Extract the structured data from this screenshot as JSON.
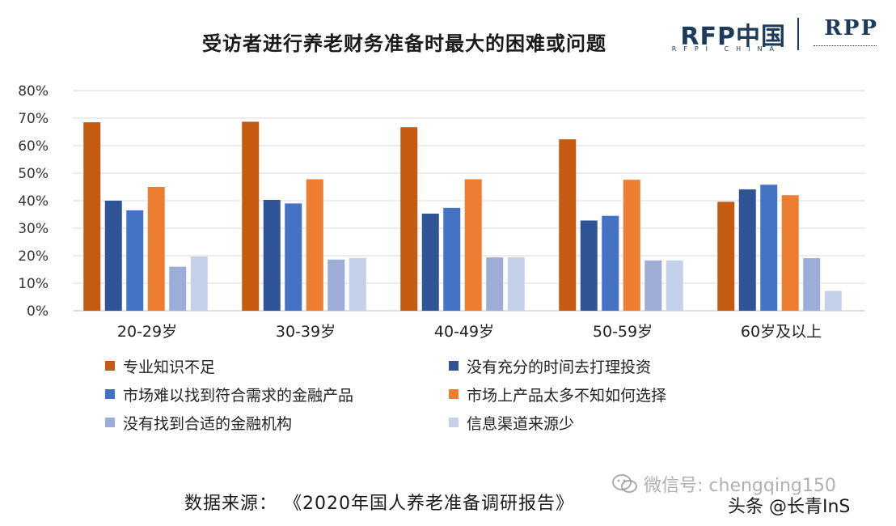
{
  "logo": {
    "rfp": "RFP中国",
    "rfp_sub": "RFPI CHINA",
    "rpp": "RPP"
  },
  "source": "数据来源：  《2020年国人养老准备调研报告》",
  "watermark": "微信号: chengqing150",
  "toutiao": "头条 @长青InS",
  "chart_data": {
    "type": "bar",
    "title": "受访者进行养老财务准备时最大的困难或问题",
    "categories": [
      "20-29岁",
      "30-39岁",
      "40-49岁",
      "50-59岁",
      "60岁及以上"
    ],
    "ylim": [
      0,
      80
    ],
    "yticks": [
      "0%",
      "10%",
      "20%",
      "30%",
      "40%",
      "50%",
      "60%",
      "70%",
      "80%"
    ],
    "grid": true,
    "legend_position": "bottom",
    "series": [
      {
        "name": "专业知识不足",
        "color": "#c55a11",
        "values": [
          68.5,
          68.7,
          66.7,
          62.3,
          39.6
        ]
      },
      {
        "name": "没有充分的时间去打理投资",
        "color": "#2f5597",
        "values": [
          40.0,
          40.3,
          35.3,
          32.8,
          44.1
        ]
      },
      {
        "name": "市场难以找到符合需求的金融产品",
        "color": "#4472c4",
        "values": [
          36.5,
          39.0,
          37.4,
          34.5,
          45.8
        ]
      },
      {
        "name": "市场上产品太多不知如何选择",
        "color": "#ed7d31",
        "values": [
          45.0,
          47.8,
          47.8,
          47.6,
          42.0
        ]
      },
      {
        "name": "没有找到合适的金融机构",
        "color": "#9dadd8",
        "values": [
          16.0,
          18.6,
          19.4,
          18.3,
          19.1
        ]
      },
      {
        "name": "信息渠道来源少",
        "color": "#c5d0ea",
        "values": [
          19.7,
          19.2,
          19.4,
          18.3,
          7.2
        ]
      }
    ]
  }
}
